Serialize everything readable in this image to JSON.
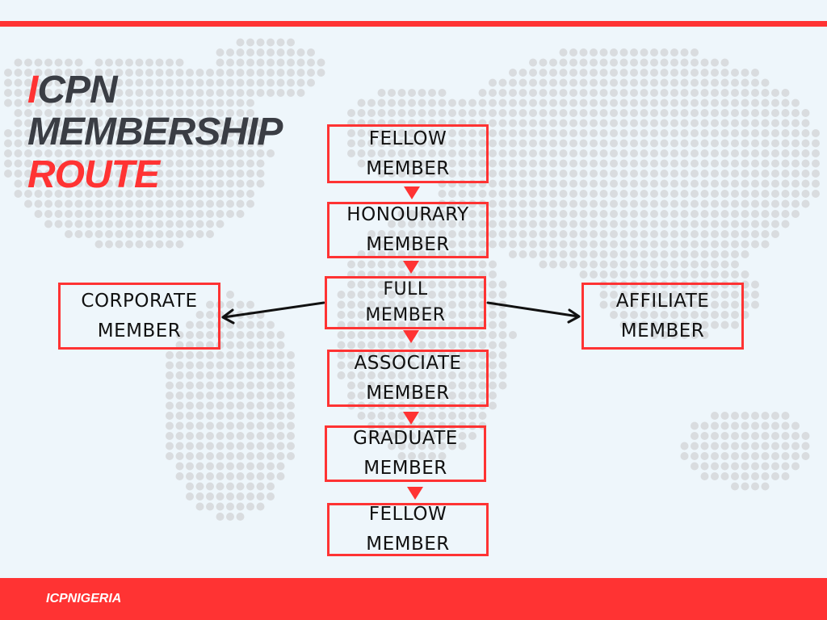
{
  "title": {
    "line1_accent": "I",
    "line1_rest": "CPN",
    "line2": "MEMBERSHIP",
    "line3": "ROUTE"
  },
  "nodes": {
    "fellow_top": {
      "line1": "FELLOW",
      "line2": "MEMBER"
    },
    "honourary": {
      "line1": "HONOURARY",
      "line2": "MEMBER"
    },
    "full": {
      "line1": "FULL",
      "line2": "MEMBER"
    },
    "associate": {
      "line1": "ASSOCIATE",
      "line2": "MEMBER"
    },
    "graduate": {
      "line1": "GRADUATE",
      "line2": "MEMBER"
    },
    "fellow_bottom": {
      "line1": "FELLOW",
      "line2": "MEMBER"
    },
    "corporate": {
      "line1": "CORPORATE",
      "line2": "MEMBER"
    },
    "affiliate": {
      "line1": "AFFILIATE",
      "line2": "MEMBER"
    }
  },
  "edges": [
    {
      "from": "fellow_top",
      "to": "honourary"
    },
    {
      "from": "honourary",
      "to": "full"
    },
    {
      "from": "full",
      "to": "associate"
    },
    {
      "from": "associate",
      "to": "graduate"
    },
    {
      "from": "graduate",
      "to": "fellow_bottom"
    },
    {
      "from": "full",
      "to": "corporate"
    },
    {
      "from": "full",
      "to": "affiliate"
    }
  ],
  "footer": {
    "brand": "ICPNIGERIA"
  },
  "colors": {
    "accent": "#ff3333",
    "text_dark": "#3a3d44",
    "background": "#eef6fb",
    "map_dots": "#d9dcdf"
  },
  "decoration": {
    "background_image": "dotted-world-map"
  }
}
